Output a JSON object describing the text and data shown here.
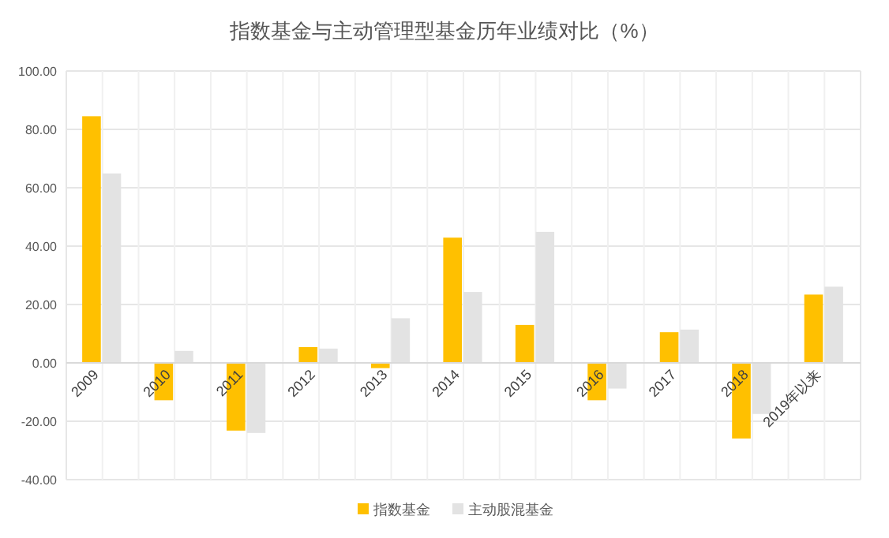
{
  "chart_data": {
    "type": "bar",
    "title": "指数基金与主动管理型基金历年业绩对比（%）",
    "categories": [
      "2009",
      "2010",
      "2011",
      "2012",
      "2013",
      "2014",
      "2015",
      "2016",
      "2017",
      "2018",
      "2019年以来"
    ],
    "series": [
      {
        "name": "指数基金",
        "color": "#ffc000",
        "values": [
          84.5,
          -12.8,
          -23.2,
          5.4,
          -1.8,
          42.9,
          13.0,
          -12.8,
          10.5,
          -25.9,
          23.4
        ]
      },
      {
        "name": "主动股混基金",
        "color": "#e3e3e3",
        "values": [
          64.9,
          4.1,
          -24.0,
          4.9,
          15.3,
          24.3,
          44.9,
          -8.8,
          11.4,
          -17.5,
          26.1
        ]
      }
    ],
    "ylim": [
      -40,
      100
    ],
    "yticks": [
      {
        "value": -40,
        "label": "-40.00"
      },
      {
        "value": -20,
        "label": "-20.00"
      },
      {
        "value": 0,
        "label": "0.00"
      },
      {
        "value": 20,
        "label": "20.00"
      },
      {
        "value": 40,
        "label": "40.00"
      },
      {
        "value": 60,
        "label": "60.00"
      },
      {
        "value": 80,
        "label": "80.00"
      },
      {
        "value": 100,
        "label": "100.00"
      }
    ],
    "grid": true,
    "legend": "bottom"
  }
}
